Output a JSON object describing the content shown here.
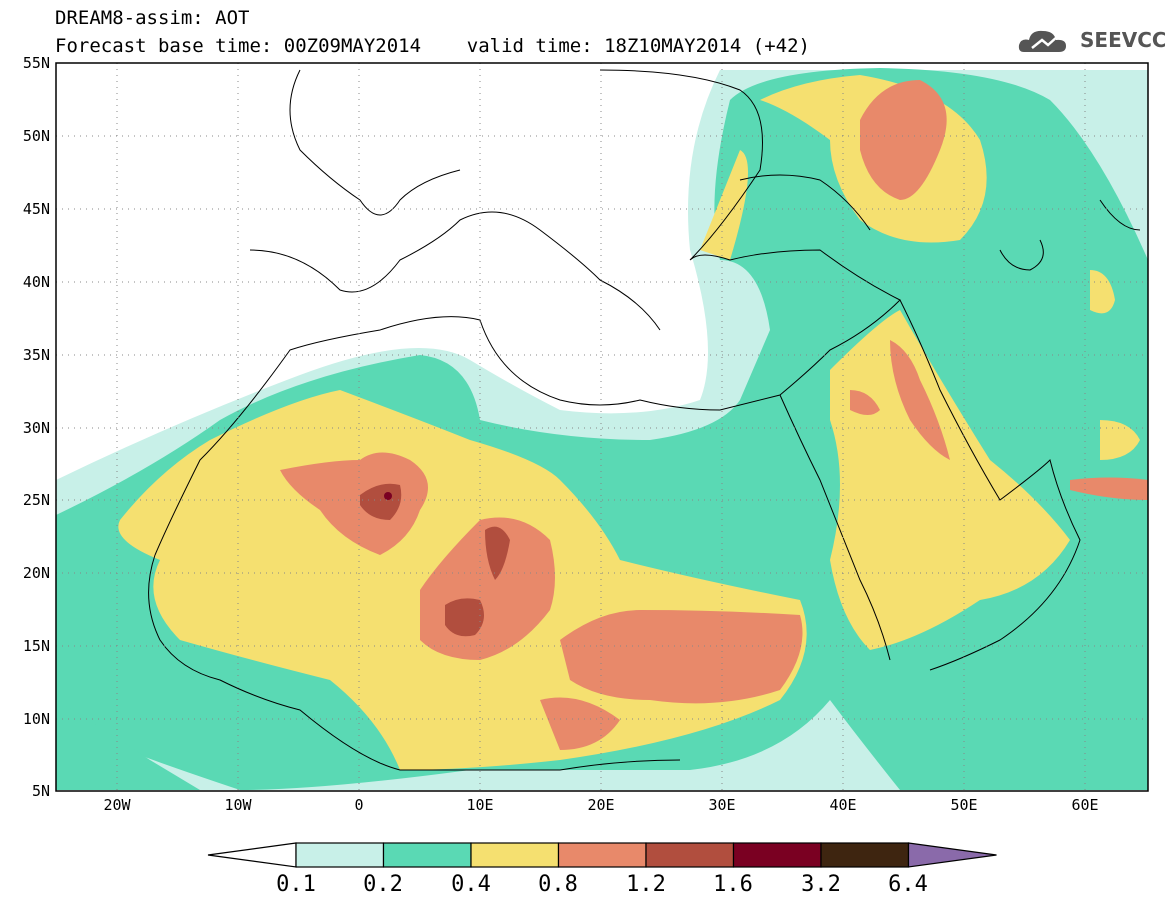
{
  "title": {
    "line1": "DREAM8-assim: AOT",
    "line2": "Forecast base time: 00Z09MAY2014    valid time: 18Z10MAY2014 (+42)"
  },
  "logo": {
    "text": "SEEVCCC",
    "icon": "cloud-icon"
  },
  "map": {
    "lon_range": [
      -25,
      65
    ],
    "lat_range": [
      5,
      55
    ],
    "lat_labels": [
      "55N",
      "50N",
      "45N",
      "40N",
      "35N",
      "30N",
      "25N",
      "20N",
      "15N",
      "10N",
      "5N"
    ],
    "lon_labels": [
      "20W",
      "10W",
      "0",
      "10E",
      "20E",
      "30E",
      "40E",
      "50E",
      "60E"
    ],
    "variable": "AOT"
  },
  "colorbar": {
    "labels": [
      "0.1",
      "0.2",
      "0.4",
      "0.8",
      "1.2",
      "1.6",
      "3.2",
      "6.4"
    ],
    "colors": [
      "#ffffff",
      "#c8f0e8",
      "#5ad9b4",
      "#f5e070",
      "#e8896a",
      "#b14e3e",
      "#7a0022",
      "#3e2510",
      "#8a6aaa"
    ]
  }
}
